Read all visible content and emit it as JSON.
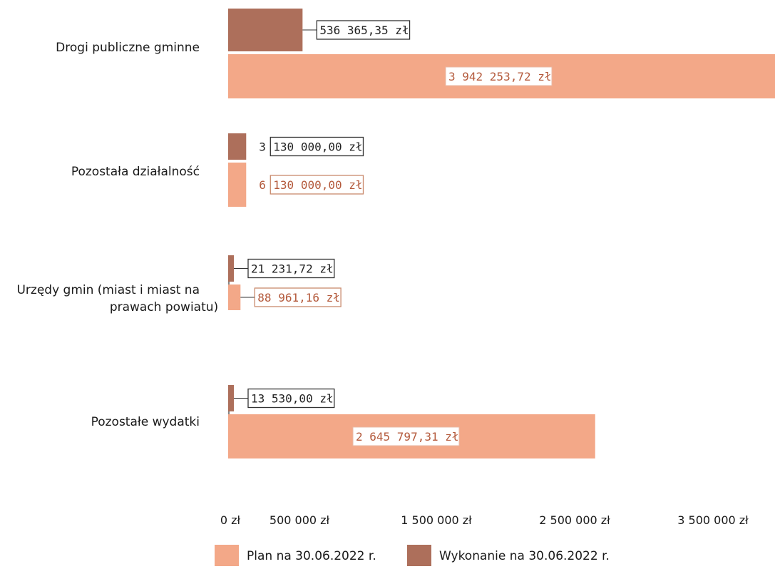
{
  "chart_data": {
    "type": "bar",
    "orientation": "horizontal",
    "categories": [
      "Drogi publiczne gminne",
      "Pozostała działalność",
      [
        "Urzędy gmin (miast i miast na",
        "prawach powiatu)"
      ],
      "Pozostałe wydatki"
    ],
    "series": [
      {
        "name": "Wykonanie na 30.06.2022 r.",
        "color": "#ad6f5b",
        "values": [
          536365.35,
          130000.0,
          21231.72,
          13530.0
        ],
        "labels": [
          "536 365,35 zł",
          "130 000,00 zł",
          "21 231,72 zł",
          "13 530,00 zł"
        ],
        "label_prefixes": [
          "",
          "3",
          "",
          ""
        ]
      },
      {
        "name": "Plan na 30.06.2022 r.",
        "color": "#f3a888",
        "values": [
          3942253.72,
          130000.0,
          88961.16,
          2645797.31
        ],
        "labels": [
          "3 942 253,72 zł",
          "130 000,00 zł",
          "88 961,16 zł",
          "2 645 797,31 zł"
        ],
        "label_prefixes": [
          "",
          "6",
          "",
          ""
        ]
      }
    ],
    "x_tick_values": [
      0,
      500000,
      1500000,
      2500000,
      3500000
    ],
    "x_tick_labels": [
      "0 zł",
      "500 000 zł",
      "1 500 000 zł",
      "2 500 000 zł",
      "3 500 000 zł"
    ],
    "xlim": [
      0,
      3942253.72
    ],
    "legend": {
      "position": "bottom",
      "items": [
        {
          "label": "Plan na 30.06.2022 r.",
          "color": "#f3a888"
        },
        {
          "label": "Wykonanie na 30.06.2022 r.",
          "color": "#ad6f5b"
        }
      ]
    },
    "grid": false
  }
}
